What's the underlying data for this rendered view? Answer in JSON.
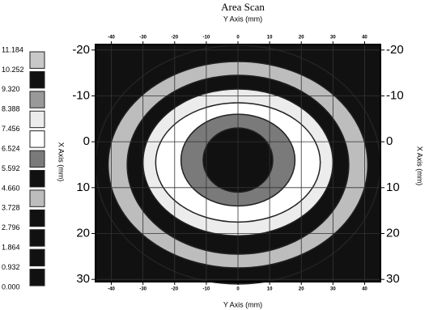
{
  "chart_data": {
    "type": "contour",
    "title": "Area Scan",
    "xlabel": "Y Axis (mm)",
    "ylabel": "X Axis (mm)",
    "xlim": [
      -45,
      45
    ],
    "ylim": [
      -21.2,
      30.5
    ],
    "xticks": [
      -40,
      -30,
      -20,
      -10,
      0,
      10,
      20,
      30,
      40
    ],
    "yticks": [
      -20,
      -10,
      0,
      10,
      20,
      30
    ],
    "grid": true,
    "levels": [
      {
        "value": 0,
        "label": "0.000"
      },
      0.932,
      1.864,
      2.796,
      3.728,
      {
        "value": 4.66,
        "label": "4.660"
      },
      5.592,
      6.524,
      7.456,
      8.388,
      {
        "value": 9.32,
        "label": "9.320"
      },
      10.252,
      11.184
    ],
    "colors": [
      "#111111",
      "#111111",
      "#111111",
      "#111111",
      "#bdbdbd",
      "#111111",
      "#7a7a7a",
      "#ffffff",
      "#ececec",
      "#999999",
      "#111111",
      "#c8c8c8"
    ],
    "regions": [
      {
        "cx": 0,
        "cy": 5,
        "rx": 45,
        "ry": 26,
        "value": 1.2
      },
      {
        "cx": 0,
        "cy": 5,
        "rx": 41,
        "ry": 22.5,
        "value": 4.2
      },
      {
        "cx": 0,
        "cy": 5,
        "rx": 35,
        "ry": 19.5,
        "value": 5.1
      },
      {
        "cx": 0,
        "cy": 4.5,
        "rx": 30,
        "ry": 16,
        "value": 7.8
      },
      {
        "cx": 0,
        "cy": 4.5,
        "rx": 26,
        "ry": 13,
        "value": 7.0
      },
      {
        "cx": 0,
        "cy": 4,
        "rx": 18,
        "ry": 10,
        "value": 6.0
      },
      {
        "cx": 0,
        "cy": 4,
        "rx": 11,
        "ry": 7,
        "value": 10.0
      }
    ]
  }
}
